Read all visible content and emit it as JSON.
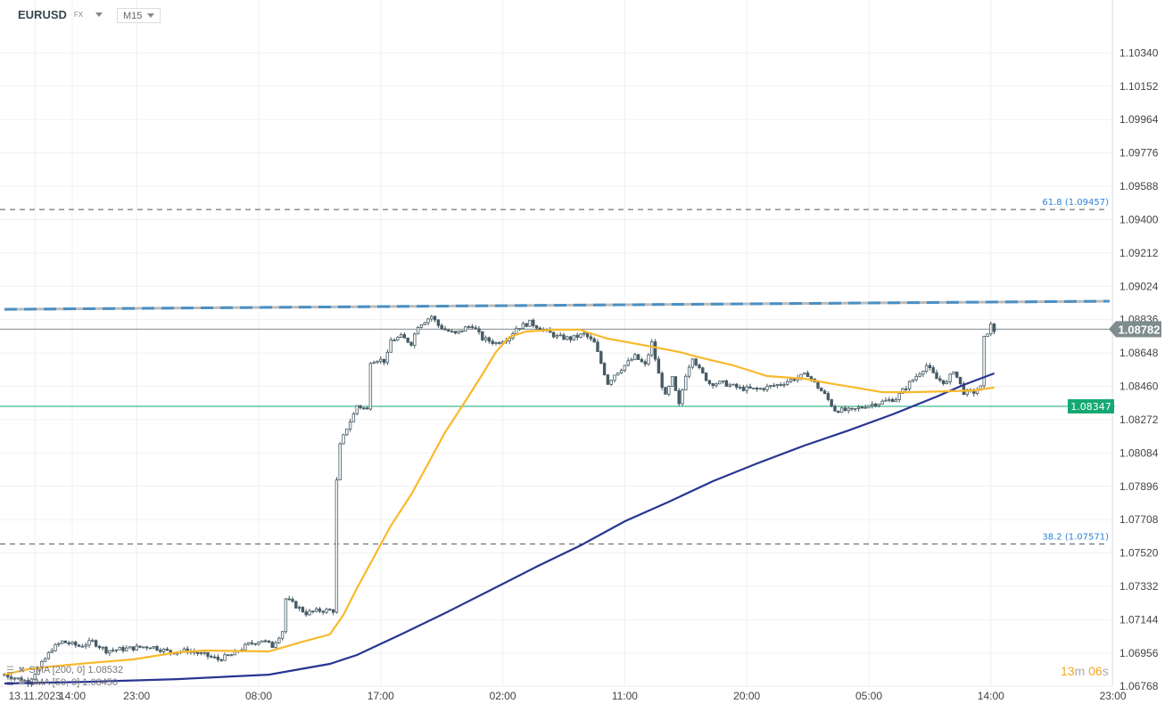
{
  "header": {
    "symbol": "EURUSD",
    "market": "FX",
    "timeframe": "M15"
  },
  "legend": [
    {
      "label": "SMA [200, 0] 1.08532",
      "color": "#283593"
    },
    {
      "label": "SMA [50, 0] 1.08450",
      "color": "#f9b92c"
    }
  ],
  "timer": {
    "minutes": "13",
    "m": "m",
    "seconds": "06",
    "s": "s"
  },
  "chart_data": {
    "type": "candlestick",
    "symbol": "EURUSD",
    "interval": "M15",
    "x_unit": "15-minute bar index",
    "y_ticks": [
      "1.10340",
      "1.10152",
      "1.09964",
      "1.09776",
      "1.09588",
      "1.09400",
      "1.09212",
      "1.09024",
      "1.08836",
      "1.08648",
      "1.08460",
      "1.08272",
      "1.08084",
      "1.07896",
      "1.07708",
      "1.07520",
      "1.07332",
      "1.07144",
      "1.06956",
      "1.06768"
    ],
    "x_ticks": [
      {
        "label": "13.11.2023",
        "bar": 9
      },
      {
        "label": "14:00",
        "bar": 20
      },
      {
        "label": "23:00",
        "bar": 39
      },
      {
        "label": "08:00",
        "bar": 75
      },
      {
        "label": "17:00",
        "bar": 111
      },
      {
        "label": "02:00",
        "bar": 147
      },
      {
        "label": "11:00",
        "bar": 183
      },
      {
        "label": "20:00",
        "bar": 219
      },
      {
        "label": "05:00",
        "bar": 255
      },
      {
        "label": "14:00",
        "bar": 291
      },
      {
        "label": "23:00",
        "bar": 327
      }
    ],
    "ylim": [
      1.0668,
      1.105
    ],
    "grid": true,
    "price_path": [
      [
        0,
        1.06834
      ],
      [
        7,
        1.06794
      ],
      [
        11,
        1.06895
      ],
      [
        14,
        1.0698
      ],
      [
        17,
        1.0702
      ],
      [
        22,
        1.06995
      ],
      [
        26,
        1.0702
      ],
      [
        30,
        1.0697
      ],
      [
        36,
        1.0698
      ],
      [
        43,
        1.06995
      ],
      [
        49,
        1.0696
      ],
      [
        54,
        1.0697
      ],
      [
        59,
        1.06945
      ],
      [
        63,
        1.0692
      ],
      [
        67,
        1.06945
      ],
      [
        72,
        1.07005
      ],
      [
        76,
        1.0703
      ],
      [
        79,
        1.06995
      ],
      [
        82,
        1.07081
      ],
      [
        83,
        1.07262
      ],
      [
        86,
        1.07221
      ],
      [
        89,
        1.07181
      ],
      [
        93,
        1.07196
      ],
      [
        97,
        1.07196
      ],
      [
        98,
        1.07925
      ],
      [
        99,
        1.08126
      ],
      [
        101,
        1.08226
      ],
      [
        103,
        1.08302
      ],
      [
        104,
        1.08352
      ],
      [
        107,
        1.08327
      ],
      [
        108,
        1.08603
      ],
      [
        110,
        1.08613
      ],
      [
        112,
        1.08603
      ],
      [
        113,
        1.08638
      ],
      [
        114,
        1.08719
      ],
      [
        117,
        1.08739
      ],
      [
        120,
        1.08704
      ],
      [
        122,
        1.08804
      ],
      [
        126,
        1.08855
      ],
      [
        128,
        1.08804
      ],
      [
        130,
        1.08779
      ],
      [
        133,
        1.08754
      ],
      [
        136,
        1.08789
      ],
      [
        138,
        1.08804
      ],
      [
        141,
        1.08729
      ],
      [
        145,
        1.08704
      ],
      [
        149,
        1.08739
      ],
      [
        151,
        1.08789
      ],
      [
        155,
        1.08819
      ],
      [
        159,
        1.08779
      ],
      [
        163,
        1.08739
      ],
      [
        167,
        1.08729
      ],
      [
        171,
        1.08754
      ],
      [
        174,
        1.08704
      ],
      [
        178,
        1.08478
      ],
      [
        180,
        1.08528
      ],
      [
        183,
        1.08578
      ],
      [
        186,
        1.08628
      ],
      [
        189,
        1.08578
      ],
      [
        191,
        1.08704
      ],
      [
        193,
        1.08528
      ],
      [
        195,
        1.08402
      ],
      [
        197,
        1.08503
      ],
      [
        199,
        1.08352
      ],
      [
        201,
        1.08528
      ],
      [
        203,
        1.08628
      ],
      [
        205,
        1.08553
      ],
      [
        208,
        1.08478
      ],
      [
        212,
        1.08478
      ],
      [
        217,
        1.08448
      ],
      [
        222,
        1.08442
      ],
      [
        228,
        1.08468
      ],
      [
        233,
        1.08503
      ],
      [
        237,
        1.08528
      ],
      [
        239,
        1.08478
      ],
      [
        242,
        1.08412
      ],
      [
        245,
        1.08327
      ],
      [
        250,
        1.08322
      ],
      [
        254,
        1.08352
      ],
      [
        258,
        1.08367
      ],
      [
        263,
        1.08392
      ],
      [
        267,
        1.08478
      ],
      [
        270,
        1.08538
      ],
      [
        272,
        1.08578
      ],
      [
        275,
        1.08503
      ],
      [
        278,
        1.08478
      ],
      [
        280,
        1.08553
      ],
      [
        283,
        1.08427
      ],
      [
        286,
        1.08427
      ],
      [
        288,
        1.08453
      ],
      [
        289,
        1.08729
      ],
      [
        291,
        1.08804
      ],
      [
        292,
        1.08769
      ]
    ],
    "indicators": [
      {
        "name": "SMA [200, 0]",
        "last": 1.08532,
        "color": "#283593",
        "points": [
          [
            0,
            1.06784
          ],
          [
            25,
            1.06794
          ],
          [
            51,
            1.06809
          ],
          [
            78,
            1.06834
          ],
          [
            96,
            1.06895
          ],
          [
            104,
            1.06945
          ],
          [
            117,
            1.07061
          ],
          [
            130,
            1.07181
          ],
          [
            143,
            1.07307
          ],
          [
            157,
            1.07443
          ],
          [
            170,
            1.07563
          ],
          [
            183,
            1.07699
          ],
          [
            196,
            1.07809
          ],
          [
            209,
            1.07925
          ],
          [
            222,
            1.08025
          ],
          [
            236,
            1.08126
          ],
          [
            249,
            1.08211
          ],
          [
            262,
            1.08302
          ],
          [
            275,
            1.08402
          ],
          [
            283,
            1.08468
          ],
          [
            292,
            1.08533
          ]
        ]
      },
      {
        "name": "SMA [50, 0]",
        "last": 1.0845,
        "color": "#f9b92c",
        "points": [
          [
            0,
            1.06834
          ],
          [
            7,
            1.06865
          ],
          [
            14,
            1.0688
          ],
          [
            25,
            1.069
          ],
          [
            38,
            1.0692
          ],
          [
            51,
            1.0696
          ],
          [
            59,
            1.0697
          ],
          [
            78,
            1.06965
          ],
          [
            88,
            1.0702
          ],
          [
            96,
            1.07061
          ],
          [
            100,
            1.07171
          ],
          [
            104,
            1.07322
          ],
          [
            109,
            1.07498
          ],
          [
            114,
            1.07674
          ],
          [
            120,
            1.0785
          ],
          [
            125,
            1.08025
          ],
          [
            130,
            1.08201
          ],
          [
            136,
            1.08377
          ],
          [
            141,
            1.08528
          ],
          [
            145,
            1.08654
          ],
          [
            149,
            1.08739
          ],
          [
            154,
            1.08769
          ],
          [
            162,
            1.08779
          ],
          [
            170,
            1.08779
          ],
          [
            172,
            1.08764
          ],
          [
            178,
            1.08729
          ],
          [
            188,
            1.08694
          ],
          [
            199,
            1.08654
          ],
          [
            204,
            1.08628
          ],
          [
            215,
            1.08578
          ],
          [
            225,
            1.08518
          ],
          [
            236,
            1.08503
          ],
          [
            243,
            1.08478
          ],
          [
            251,
            1.08453
          ],
          [
            259,
            1.08427
          ],
          [
            267,
            1.08427
          ],
          [
            278,
            1.08432
          ],
          [
            286,
            1.08437
          ],
          [
            292,
            1.08453
          ]
        ]
      }
    ],
    "levels": [
      {
        "label": "61.8 (1.09457)",
        "price": 1.09457,
        "style": "dashed",
        "color": "#2a83d8"
      },
      {
        "label": "38.2 (1.07571)",
        "price": 1.07571,
        "style": "dashed",
        "color": "#2a83d8"
      },
      {
        "label": "1.08347",
        "price": 1.08347,
        "style": "solid",
        "color": "#16a874"
      }
    ],
    "trendline": {
      "start": [
        0,
        1.08894
      ],
      "end": [
        326,
        1.0894
      ],
      "color": "#4a8fc4",
      "style": "dashed"
    },
    "last_price": {
      "label": "1.08782",
      "price": 1.08782,
      "color": "#7f8c8d"
    },
    "candle_colors": {
      "up_fill": "#ffffff",
      "down_fill": "#455a64",
      "stroke": "#455a64"
    }
  }
}
